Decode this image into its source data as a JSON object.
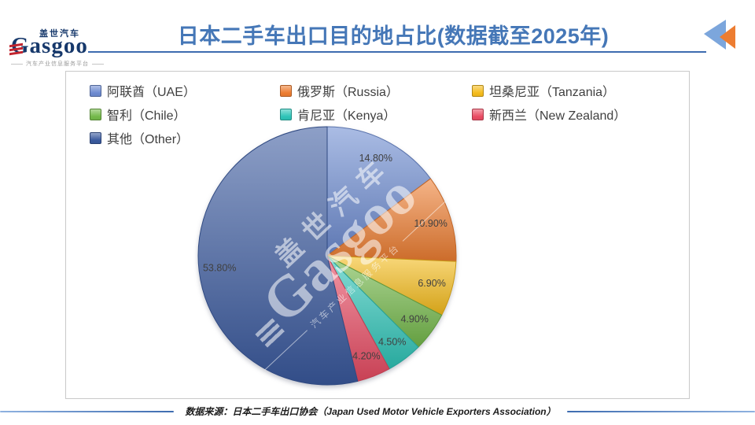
{
  "header": {
    "logo": {
      "brand": "Gasgoo",
      "brand_cn": "盖世汽车",
      "tagline": "汽车产业信息服务平台"
    },
    "title": "日本二手车出口目的地占比(数据截至2025年)",
    "back_icon": "back-arrow-icon",
    "accent_color": "#4577B7"
  },
  "chart_data": {
    "type": "pie",
    "title": "日本二手车出口目的地占比(数据截至2025年)",
    "unit": "percent",
    "start_angle_deg": 0,
    "direction": "clockwise",
    "legend_position": "top-left",
    "label_format": "percent_2dp",
    "series": [
      {
        "id": "uae",
        "label": "阿联酋（UAE）",
        "value": 14.8,
        "color": "#6D8BD0"
      },
      {
        "id": "russia",
        "label": "俄罗斯（Russia）",
        "value": 10.9,
        "color": "#ED7D31"
      },
      {
        "id": "tanzania",
        "label": "坦桑尼亚（Tanzania）",
        "value": 6.9,
        "color": "#F5BC1C"
      },
      {
        "id": "chile",
        "label": "智利（Chile）",
        "value": 4.9,
        "color": "#74B94A"
      },
      {
        "id": "kenya",
        "label": "肯尼亚（Kenya）",
        "value": 4.5,
        "color": "#2EC4B8"
      },
      {
        "id": "new-zealand",
        "label": "新西兰（New Zealand）",
        "value": 4.2,
        "color": "#E94C63"
      },
      {
        "id": "other",
        "label": "其他（Other）",
        "value": 53.8,
        "color": "#3A5A9E"
      }
    ]
  },
  "watermark": {
    "line1": "盖世汽车",
    "line2": "Gasgoo",
    "line3": "汽车产业信息服务平台"
  },
  "footer": {
    "source": "数据来源：日本二手车出口协会（Japan Used Motor Vehicle Exporters Association）"
  }
}
